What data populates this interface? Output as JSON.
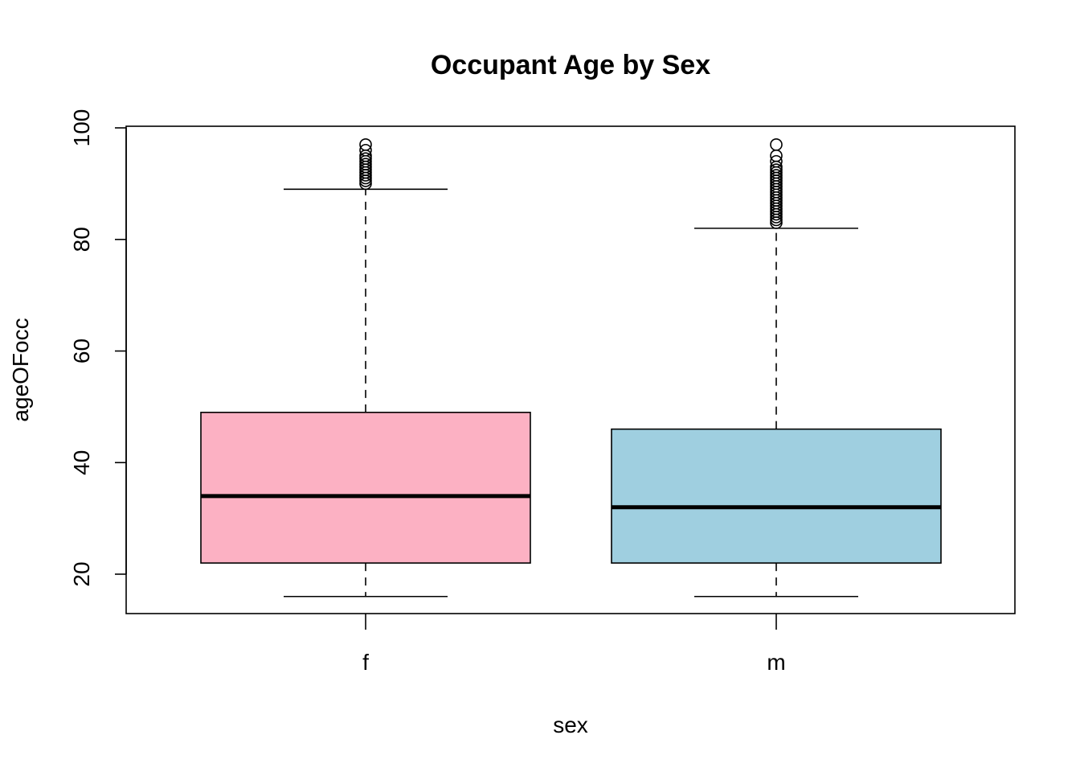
{
  "chart_data": {
    "type": "boxplot",
    "title": "Occupant Age by Sex",
    "xlabel": "sex",
    "ylabel": "ageOFocc",
    "categories": [
      "f",
      "m"
    ],
    "ylim": [
      12.5,
      100
    ],
    "yticks": [
      20,
      40,
      60,
      80,
      100
    ],
    "grid": false,
    "legend": "none",
    "boxes": [
      {
        "category": "f",
        "color": "#FCB1C3",
        "whisker_low": 16,
        "q1": 22,
        "median": 34,
        "q3": 49,
        "whisker_high": 89,
        "outliers": [
          90,
          90.5,
          91,
          91.5,
          92,
          92.5,
          93,
          93.5,
          94,
          94.5,
          95,
          96,
          97
        ]
      },
      {
        "category": "m",
        "color": "#9FCFE0",
        "whisker_low": 16,
        "q1": 22,
        "median": 32,
        "q3": 46,
        "whisker_high": 82,
        "outliers": [
          83,
          83.5,
          84,
          84.5,
          85,
          85.5,
          86,
          86.5,
          87,
          87.5,
          88,
          88.5,
          89,
          89.5,
          90,
          90.5,
          91,
          91.5,
          92,
          92.5,
          93,
          94,
          95,
          97
        ]
      }
    ]
  }
}
